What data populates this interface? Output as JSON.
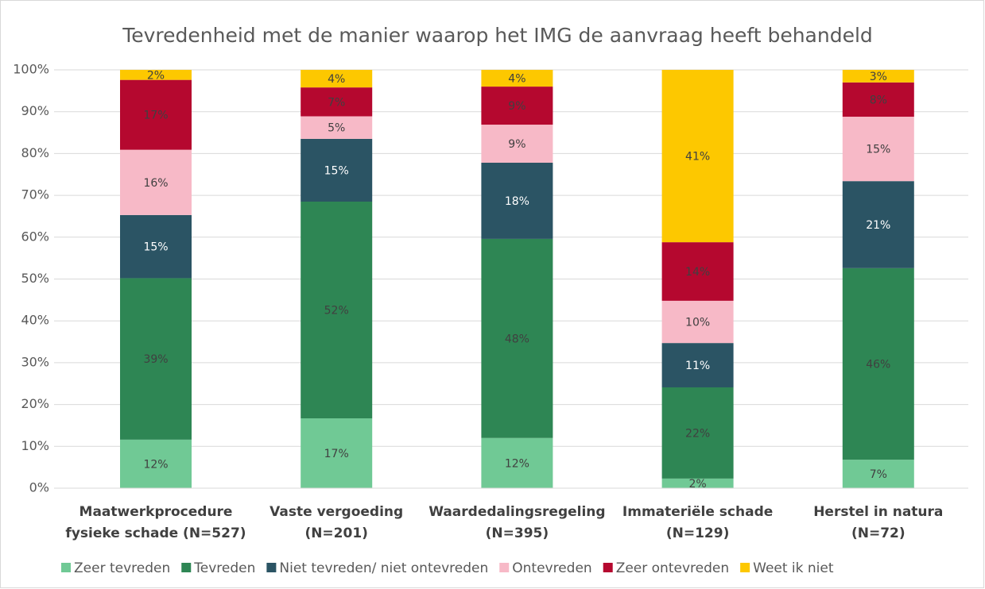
{
  "chart_data": {
    "type": "stacked_bar_percent",
    "title": "Tevredenheid met de manier waarop het IMG de aanvraag heeft behandeld",
    "categories": [
      [
        "Maatwerkprocedure",
        "fysieke schade (N=527)"
      ],
      [
        "Vaste vergoeding",
        "(N=201)"
      ],
      [
        "Waardedalingsregeling",
        "(N=395)"
      ],
      [
        "Immateriële schade",
        "(N=129)"
      ],
      [
        "Herstel in natura",
        "(N=72)"
      ]
    ],
    "series": [
      {
        "name": "Zeer tevreden",
        "color": "#70c995",
        "values": [
          11.6,
          16.7,
          12.0,
          2.3,
          6.8
        ],
        "value_labels": [
          "12%",
          "17%",
          "12%",
          "2%",
          "7%"
        ]
      },
      {
        "name": "Tevreden",
        "color": "#2e8654",
        "values": [
          38.6,
          51.8,
          47.6,
          21.8,
          45.8
        ],
        "value_labels": [
          "39%",
          "52%",
          "48%",
          "22%",
          "46%"
        ]
      },
      {
        "name": "Niet tevreden/ niet ontevreden",
        "color": "#2b5464",
        "values": [
          15.1,
          15.0,
          18.2,
          10.6,
          20.8
        ],
        "value_labels": [
          "15%",
          "15%",
          "18%",
          "11%",
          "21%"
        ]
      },
      {
        "name": "Ontevreden",
        "color": "#f7b9c7",
        "values": [
          15.6,
          5.4,
          9.1,
          10.1,
          15.4
        ],
        "value_labels": [
          "16%",
          "5%",
          "9%",
          "10%",
          "15%"
        ]
      },
      {
        "name": "Zeer ontevreden",
        "color": "#b5082f",
        "values": [
          16.7,
          6.9,
          9.1,
          14.0,
          8.2
        ],
        "value_labels": [
          "17%",
          "7%",
          "9%",
          "14%",
          "8%"
        ]
      },
      {
        "name": "Weet ik niet",
        "color": "#fdc800",
        "values": [
          2.4,
          4.2,
          4.0,
          41.2,
          3.0
        ],
        "value_labels": [
          "2%",
          "4%",
          "4%",
          "41%",
          "3%"
        ]
      }
    ],
    "ylim": [
      0,
      100
    ],
    "yticks": [
      {
        "value": 0,
        "label": "0%"
      },
      {
        "value": 10,
        "label": "10%"
      },
      {
        "value": 20,
        "label": "20%"
      },
      {
        "value": 30,
        "label": "30%"
      },
      {
        "value": 40,
        "label": "40%"
      },
      {
        "value": 50,
        "label": "50%"
      },
      {
        "value": 60,
        "label": "60%"
      },
      {
        "value": 70,
        "label": "70%"
      },
      {
        "value": 80,
        "label": "80%"
      },
      {
        "value": 90,
        "label": "90%"
      },
      {
        "value": 100,
        "label": "100%"
      }
    ],
    "grid": true,
    "legend": "bottom"
  }
}
